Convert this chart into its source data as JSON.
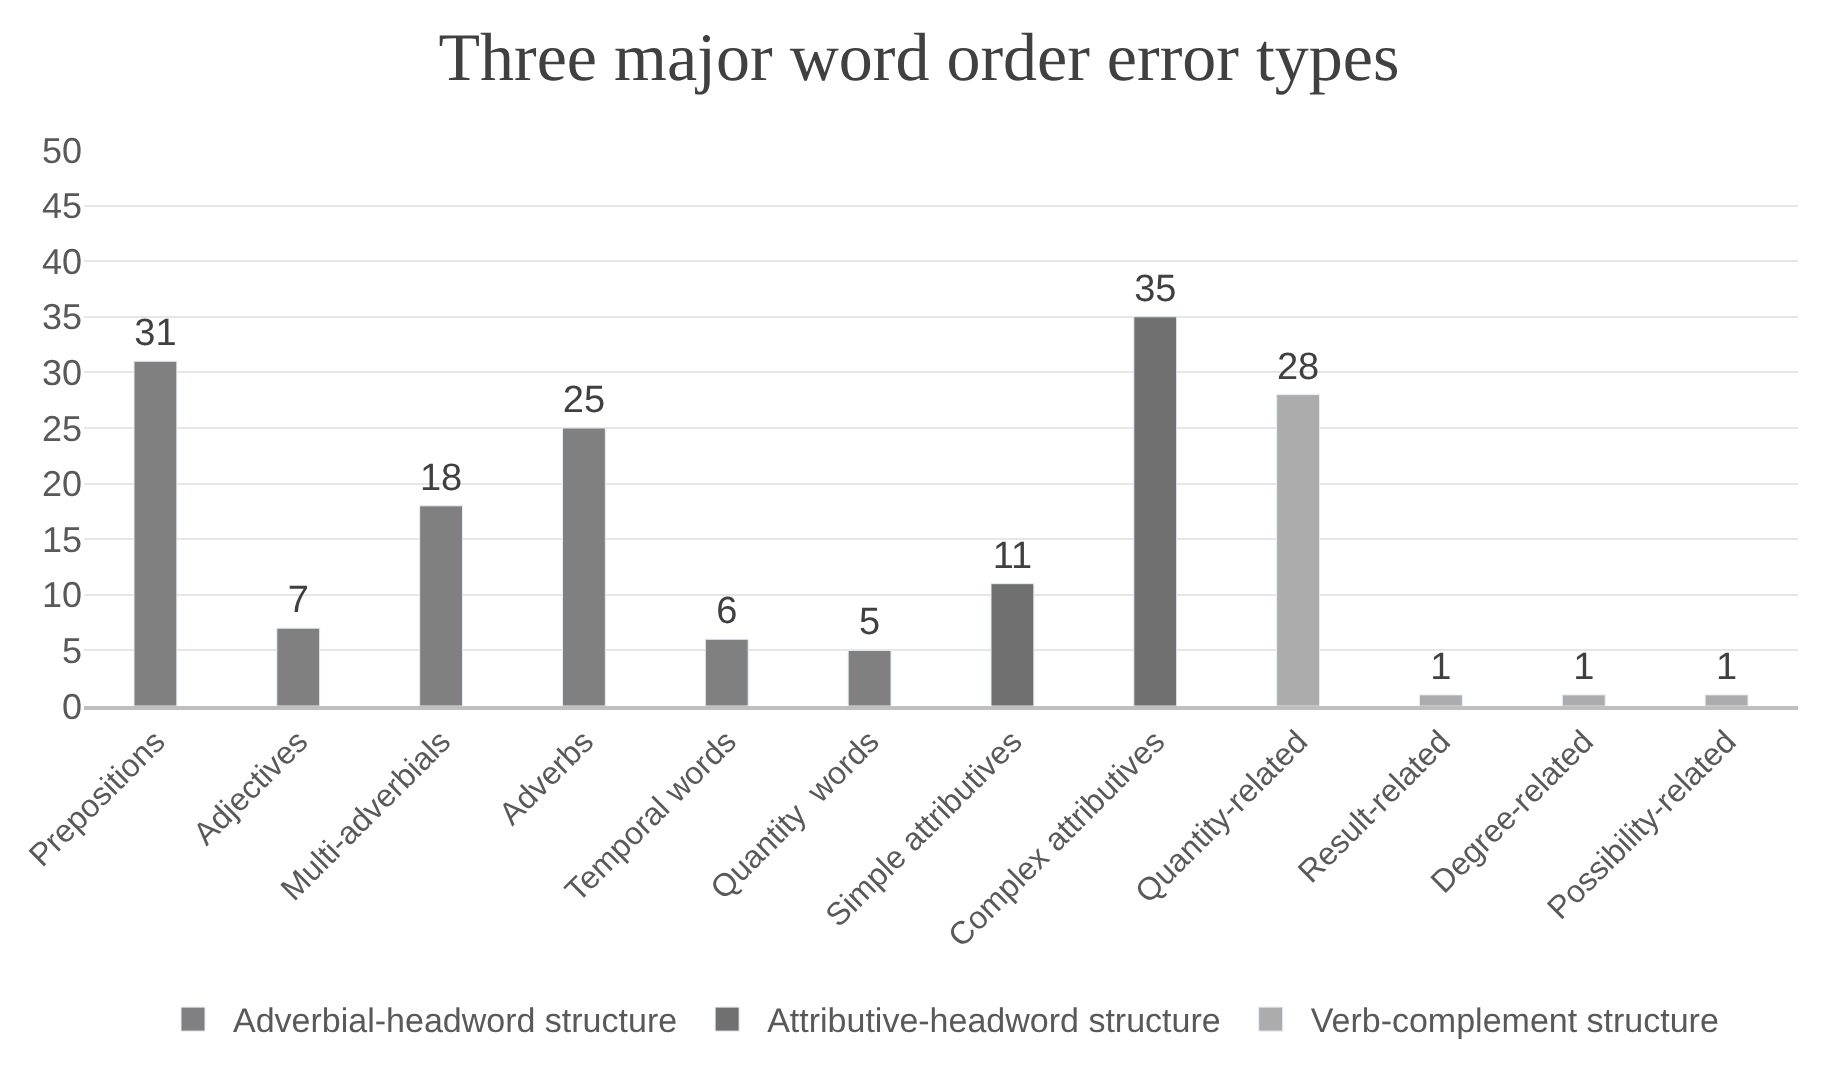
{
  "chart_data": {
    "type": "bar",
    "title": "Three major word order error types",
    "categories": [
      "Prepositions",
      "Adjectives",
      "Multi-adverbials",
      "Adverbs",
      "Temporal words",
      "Quantity  words",
      "Simple attributives",
      "Complex attributives",
      "Quantity-related",
      "Result-related",
      "Degree-related",
      "Possibility-related"
    ],
    "series": [
      {
        "name": "Adverbial-headword structure",
        "color": "#808080",
        "values": [
          31,
          7,
          18,
          25,
          6,
          5,
          null,
          null,
          null,
          null,
          null,
          null
        ]
      },
      {
        "name": "Attributive-headword structure",
        "color": "#707070",
        "values": [
          null,
          null,
          null,
          null,
          null,
          null,
          11,
          35,
          null,
          null,
          null,
          null
        ]
      },
      {
        "name": "Verb-complement structure",
        "color": "#acacac",
        "values": [
          null,
          null,
          null,
          null,
          null,
          null,
          null,
          null,
          28,
          1,
          1,
          1
        ]
      }
    ],
    "stacked": true,
    "ylim": [
      0,
      50
    ],
    "yticks": [
      0,
      5,
      10,
      15,
      20,
      25,
      30,
      35,
      40,
      45,
      50
    ],
    "grid": "y",
    "legend": "bottom",
    "data_labels": true
  }
}
